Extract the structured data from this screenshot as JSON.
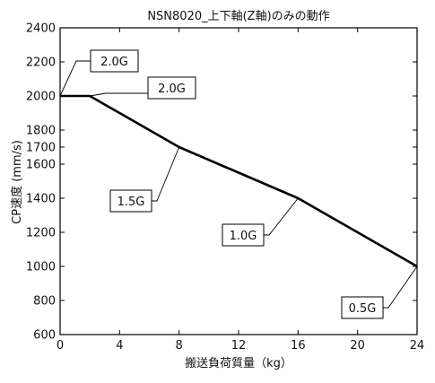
{
  "chart_data": {
    "type": "line",
    "title": "NSN8020_上下軸(Z軸)のみの動作",
    "xlabel": "搬送負荷質量（kg）",
    "ylabel": "CP速度 (mm/s)",
    "xlim": [
      0,
      24
    ],
    "ylim": [
      600,
      2400
    ],
    "x_ticks": [
      0,
      4,
      8,
      12,
      16,
      20,
      24
    ],
    "y_ticks": [
      600,
      800,
      1000,
      1200,
      1400,
      1600,
      1700,
      1800,
      2000,
      2200,
      2400
    ],
    "grid": false,
    "series": [
      {
        "x": [
          0,
          2,
          8,
          16,
          24
        ],
        "y": [
          2000,
          2000,
          1700,
          1400,
          1000
        ]
      }
    ],
    "annotations": [
      {
        "text": "2.0G",
        "x": 0,
        "y": 2000
      },
      {
        "text": "2.0G",
        "x": 2,
        "y": 2000
      },
      {
        "text": "1.5G",
        "x": 8,
        "y": 1700
      },
      {
        "text": "1.0G",
        "x": 16,
        "y": 1400
      },
      {
        "text": "0.5G",
        "x": 24,
        "y": 1000
      }
    ]
  }
}
